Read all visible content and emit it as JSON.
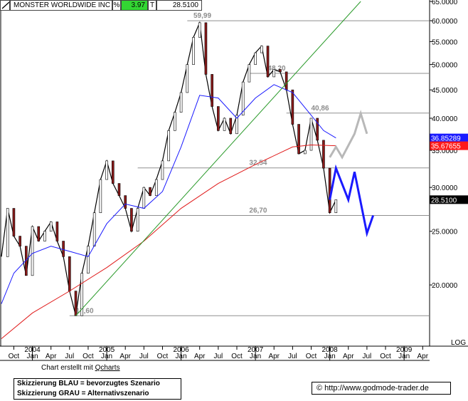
{
  "header": {
    "instrument": "MONSTER WORLDWIDE INC",
    "change_unit": "%",
    "change_value": "3.97",
    "exchange_code": "T",
    "last_price": "28.5100"
  },
  "footer": {
    "credit_prefix": "Chart erstellt mit ",
    "credit_link": "Qcharts",
    "legend_line1": "Skizzierung BLAU = bevorzugtes Szenario",
    "legend_line2": "Skizzierung GRAU = Alternativszenario",
    "copyright_symbol": "©",
    "url": "http://www.godmode-trader.de"
  },
  "chart_data": {
    "type": "candlestick",
    "yscale": "log",
    "ylim": [
      15.6,
      65.0
    ],
    "xlim": [
      "2003-08",
      "2009-05"
    ],
    "y_ticks": [
      {
        "v": 65,
        "label": "65.0000"
      },
      {
        "v": 60,
        "label": "60.0000"
      },
      {
        "v": 55,
        "label": "55.0000"
      },
      {
        "v": 50,
        "label": "50.0000"
      },
      {
        "v": 45,
        "label": "45.0000"
      },
      {
        "v": 40,
        "label": "40.0000"
      },
      {
        "v": 35,
        "label": "35.0000"
      },
      {
        "v": 30,
        "label": "30.0000"
      },
      {
        "v": 25,
        "label": "25.0000"
      },
      {
        "v": 20,
        "label": "20.0000"
      }
    ],
    "y_scale_label": "LOG",
    "x_month_ticks": [
      {
        "d": "2003-10",
        "label": "Oct"
      },
      {
        "d": "2004-01",
        "label": "Jan"
      },
      {
        "d": "2004-04",
        "label": "Apr"
      },
      {
        "d": "2004-07",
        "label": "Jul"
      },
      {
        "d": "2004-10",
        "label": "Oct"
      },
      {
        "d": "2005-01",
        "label": "Jan"
      },
      {
        "d": "2005-04",
        "label": "Apr"
      },
      {
        "d": "2005-07",
        "label": "Jul"
      },
      {
        "d": "2005-10",
        "label": "Oct"
      },
      {
        "d": "2006-01",
        "label": "Jan"
      },
      {
        "d": "2006-04",
        "label": "Apr"
      },
      {
        "d": "2006-07",
        "label": "Jul"
      },
      {
        "d": "2006-10",
        "label": "Oct"
      },
      {
        "d": "2007-01",
        "label": "Jan"
      },
      {
        "d": "2007-04",
        "label": "Apr"
      },
      {
        "d": "2007-07",
        "label": "Jul"
      },
      {
        "d": "2007-10",
        "label": "Oct"
      },
      {
        "d": "2008-01",
        "label": "Jan"
      },
      {
        "d": "2008-04",
        "label": "Apr"
      },
      {
        "d": "2008-07",
        "label": "Jul"
      },
      {
        "d": "2008-10",
        "label": "Oct"
      },
      {
        "d": "2009-01",
        "label": "Jan"
      },
      {
        "d": "2009-04",
        "label": "Apr"
      }
    ],
    "x_year_labels": [
      {
        "d": "2004-01",
        "label": "2004"
      },
      {
        "d": "2005-01",
        "label": "2005"
      },
      {
        "d": "2006-01",
        "label": "2006"
      },
      {
        "d": "2007-01",
        "label": "2007"
      },
      {
        "d": "2008-01",
        "label": "2008"
      },
      {
        "d": "2009-01",
        "label": "2009"
      }
    ],
    "horizontal_levels": [
      {
        "value": 59.99,
        "label": "59,99",
        "from": "2006-02",
        "label_at": "2006-03"
      },
      {
        "value": 48.2,
        "label": "48,20",
        "from": "2006-12",
        "label_at": "2007-03"
      },
      {
        "value": 40.86,
        "label": "40,86",
        "from": "2007-06",
        "label_at": "2007-10"
      },
      {
        "value": 32.54,
        "label": "32,54",
        "from": "2005-06",
        "label_at": "2006-12"
      },
      {
        "value": 26.7,
        "label": "26,70",
        "from": "2005-02",
        "label_at": "2006-12"
      },
      {
        "value": 17.6,
        "label": "17,60",
        "from": "2004-07",
        "label_at": "2004-08"
      }
    ],
    "trendline": {
      "color": "#2a9a2a",
      "from": {
        "d": "2004-08",
        "v": 17.6
      },
      "to": {
        "d": "2008-06",
        "v": 65.0
      }
    },
    "price_badges": [
      {
        "value": 36.85289,
        "label": "36.85289",
        "color": "#1a1aff"
      },
      {
        "value": 35.67655,
        "label": "35.67655",
        "color": "#ff1a1a"
      },
      {
        "value": 28.51,
        "label": "28.5100",
        "color": "#000000"
      }
    ],
    "series": [
      {
        "name": "price",
        "color": "#000000",
        "points": [
          [
            "2003-08",
            22.5
          ],
          [
            "2003-09",
            27.5
          ],
          [
            "2003-10",
            24.5
          ],
          [
            "2003-11",
            23.5
          ],
          [
            "2003-12",
            20.8
          ],
          [
            "2004-01",
            25.5
          ],
          [
            "2004-02",
            24.0
          ],
          [
            "2004-03",
            25.0
          ],
          [
            "2004-04",
            26.0
          ],
          [
            "2004-05",
            24.0
          ],
          [
            "2004-06",
            22.5
          ],
          [
            "2004-07",
            19.5
          ],
          [
            "2004-08",
            17.6
          ],
          [
            "2004-09",
            21.0
          ],
          [
            "2004-10",
            23.5
          ],
          [
            "2004-11",
            27.0
          ],
          [
            "2004-12",
            31.0
          ],
          [
            "2005-01",
            33.5
          ],
          [
            "2005-02",
            30.5
          ],
          [
            "2005-03",
            29.0
          ],
          [
            "2005-04",
            27.5
          ],
          [
            "2005-05",
            25.0
          ],
          [
            "2005-06",
            27.5
          ],
          [
            "2005-07",
            30.0
          ],
          [
            "2005-08",
            29.0
          ],
          [
            "2005-09",
            31.0
          ],
          [
            "2005-10",
            33.5
          ],
          [
            "2005-11",
            38.0
          ],
          [
            "2005-12",
            41.0
          ],
          [
            "2006-01",
            44.5
          ],
          [
            "2006-02",
            50.0
          ],
          [
            "2006-03",
            56.0
          ],
          [
            "2006-04",
            59.5
          ],
          [
            "2006-05",
            48.0
          ],
          [
            "2006-06",
            42.0
          ],
          [
            "2006-07",
            38.0
          ],
          [
            "2006-08",
            40.0
          ],
          [
            "2006-09",
            37.5
          ],
          [
            "2006-10",
            40.5
          ],
          [
            "2006-11",
            46.5
          ],
          [
            "2006-12",
            50.0
          ],
          [
            "2007-01",
            52.5
          ],
          [
            "2007-02",
            54.0
          ],
          [
            "2007-03",
            47.5
          ],
          [
            "2007-04",
            49.0
          ],
          [
            "2007-05",
            48.5
          ],
          [
            "2007-06",
            45.0
          ],
          [
            "2007-07",
            39.0
          ],
          [
            "2007-08",
            34.5
          ],
          [
            "2007-09",
            35.0
          ],
          [
            "2007-10",
            40.0
          ],
          [
            "2007-11",
            36.5
          ],
          [
            "2007-12",
            32.5
          ],
          [
            "2008-01",
            27.0
          ],
          [
            "2008-02",
            28.5
          ]
        ]
      },
      {
        "name": "moving-average-blue",
        "color": "#1a1aff",
        "points": [
          [
            "2003-08",
            18.5
          ],
          [
            "2003-10",
            21.0
          ],
          [
            "2004-01",
            22.8
          ],
          [
            "2004-04",
            23.5
          ],
          [
            "2004-07",
            23.0
          ],
          [
            "2004-10",
            22.5
          ],
          [
            "2005-01",
            25.8
          ],
          [
            "2005-04",
            28.0
          ],
          [
            "2005-07",
            27.5
          ],
          [
            "2005-10",
            29.5
          ],
          [
            "2006-01",
            35.5
          ],
          [
            "2006-04",
            44.0
          ],
          [
            "2006-07",
            43.5
          ],
          [
            "2006-10",
            40.0
          ],
          [
            "2007-01",
            43.5
          ],
          [
            "2007-04",
            46.0
          ],
          [
            "2007-07",
            44.5
          ],
          [
            "2007-10",
            40.5
          ],
          [
            "2007-12",
            38.0
          ],
          [
            "2008-02",
            36.85
          ]
        ]
      },
      {
        "name": "moving-average-red",
        "color": "#e01a1a",
        "points": [
          [
            "2003-08",
            16.0
          ],
          [
            "2004-01",
            17.8
          ],
          [
            "2004-07",
            19.5
          ],
          [
            "2005-01",
            21.5
          ],
          [
            "2005-07",
            24.0
          ],
          [
            "2006-01",
            27.5
          ],
          [
            "2006-07",
            30.5
          ],
          [
            "2007-01",
            33.0
          ],
          [
            "2007-07",
            35.5
          ],
          [
            "2007-10",
            35.8
          ],
          [
            "2008-02",
            35.68
          ]
        ]
      }
    ],
    "scenarios": [
      {
        "name": "blue-scenario",
        "color": "#1a1aff",
        "points": [
          [
            "2008-01",
            28.5
          ],
          [
            "2008-02",
            32.5
          ],
          [
            "2008-04",
            28.5
          ],
          [
            "2008-05",
            32.0
          ],
          [
            "2008-07",
            24.8
          ],
          [
            "2008-08",
            26.7
          ]
        ]
      },
      {
        "name": "grey-scenario",
        "color": "#b8b8b8",
        "points": [
          [
            "2008-01",
            34.0
          ],
          [
            "2008-02",
            35.5
          ],
          [
            "2008-03",
            34.0
          ],
          [
            "2008-05",
            37.5
          ],
          [
            "2008-06",
            40.8
          ],
          [
            "2008-07",
            37.5
          ]
        ]
      }
    ]
  }
}
